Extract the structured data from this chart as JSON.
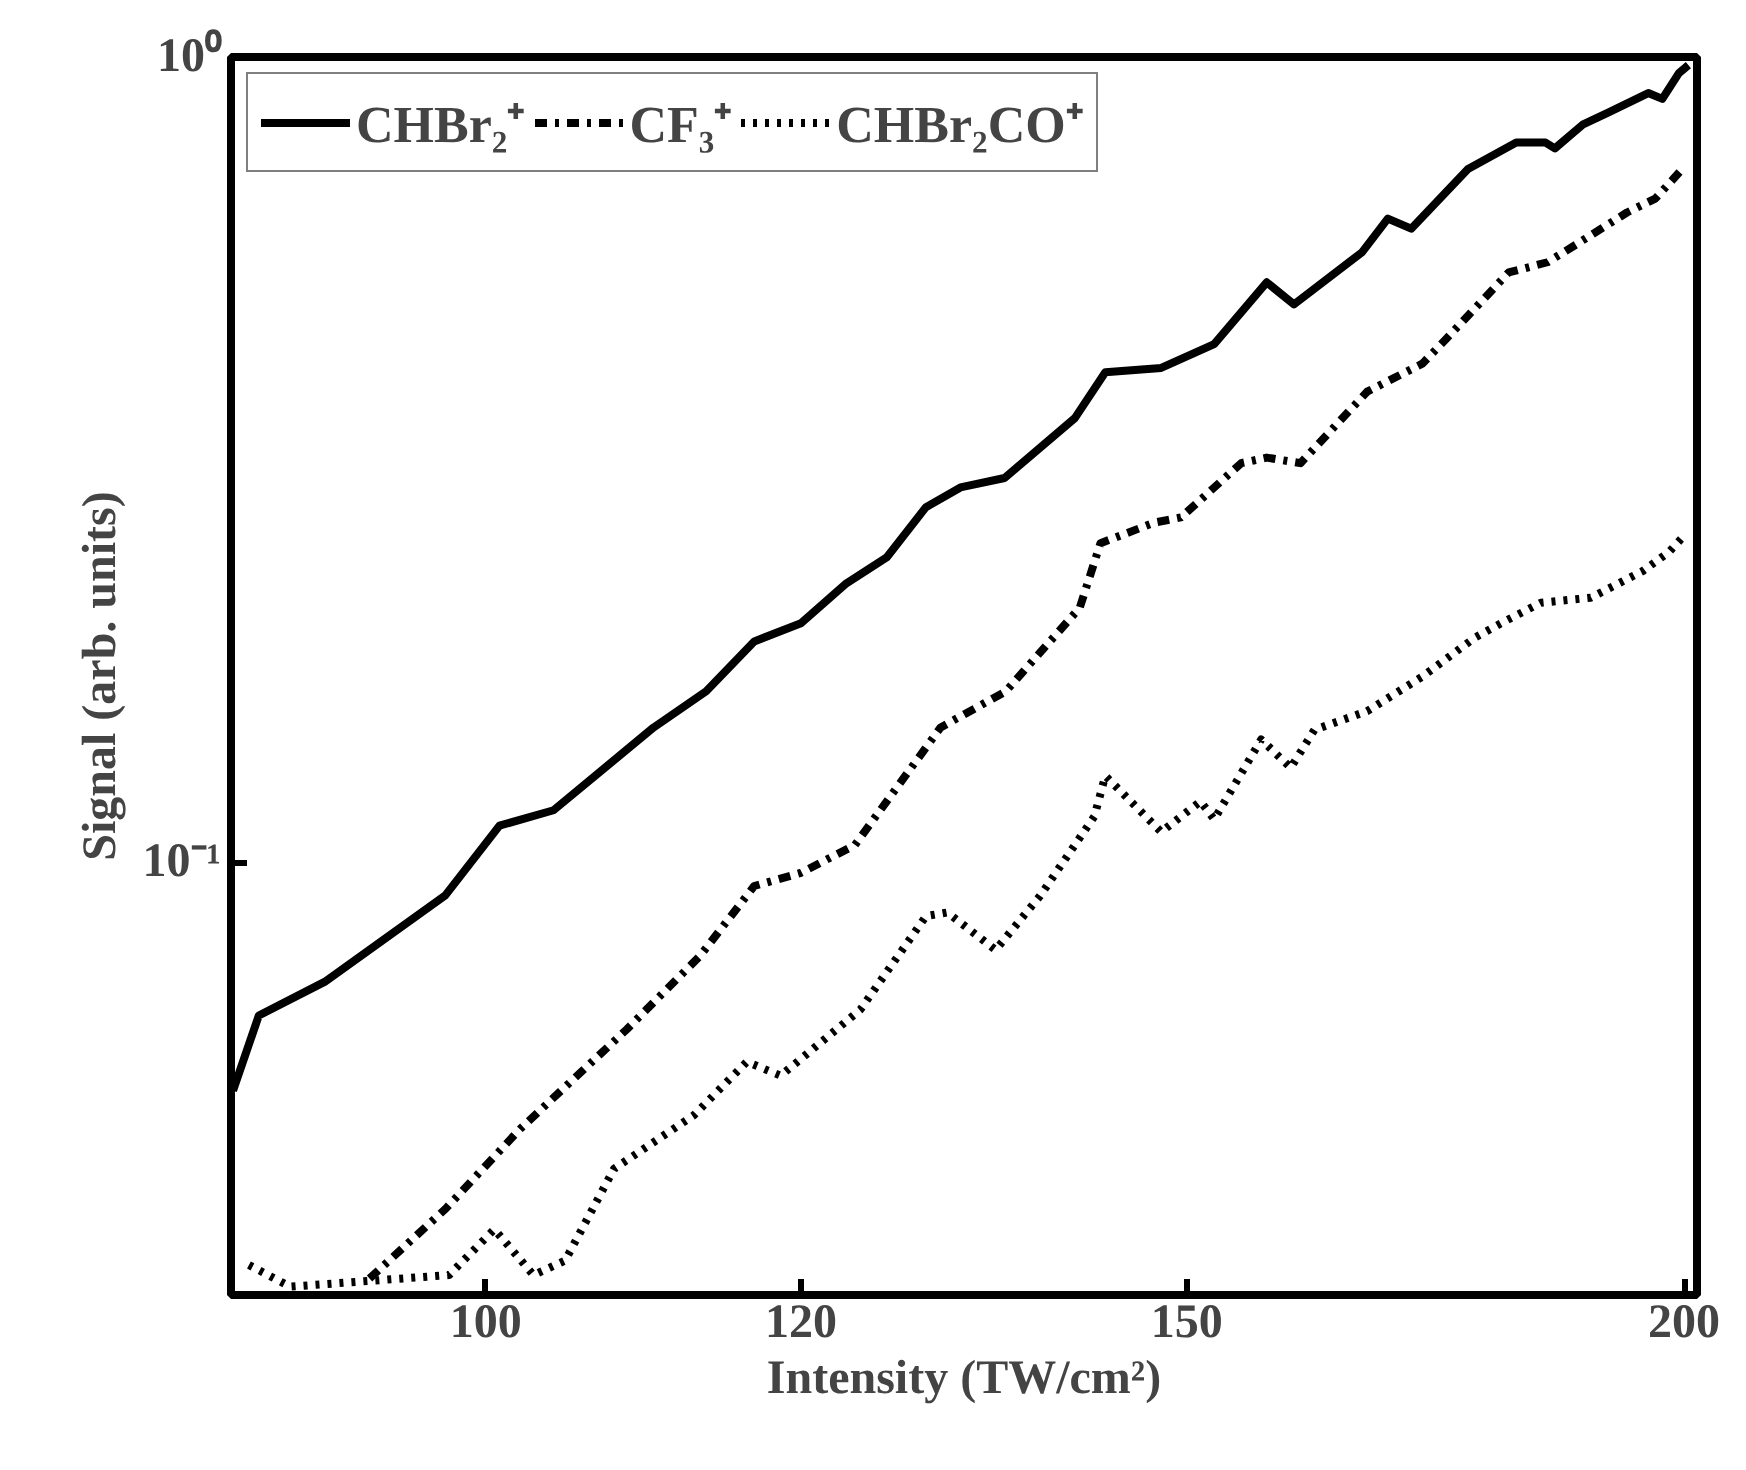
{
  "chart_data": {
    "type": "line",
    "xlabel": "Intensity (TW/cm²)",
    "ylabel": "Signal (arb. units)",
    "log": "xy",
    "xlim": [
      86.3,
      201.5
    ],
    "ylim": [
      0.029,
      1
    ],
    "xticks": [
      100,
      120,
      150,
      200
    ],
    "yticks": [
      {
        "value": 0.1,
        "label": "10⁻¹"
      },
      {
        "value": 1,
        "label": "10⁰"
      }
    ],
    "grid": false,
    "legend": "top left",
    "series": [
      {
        "name": "CHBr₂⁺",
        "color": "#000000",
        "line_style": "solid",
        "x": [
          86.4,
          87.7,
          91.1,
          97.7,
          100.8,
          104,
          110.2,
          113.6,
          116.8,
          120,
          123.2,
          126.1,
          129,
          131.6,
          135,
          140.6,
          143.1,
          147.8,
          152.4,
          157.1,
          159.6,
          166,
          168.5,
          170.8,
          176.5,
          181.5,
          184.6,
          185.6,
          188.6,
          191.4,
          195.9,
          197.5,
          199.4,
          200.5
        ],
        "values": [
          0.052,
          0.0645,
          0.071,
          0.091,
          0.111,
          0.116,
          0.147,
          0.163,
          0.188,
          0.198,
          0.222,
          0.239,
          0.276,
          0.292,
          0.3,
          0.356,
          0.406,
          0.411,
          0.44,
          0.525,
          0.493,
          0.572,
          0.63,
          0.612,
          0.726,
          0.783,
          0.783,
          0.77,
          0.824,
          0.853,
          0.902,
          0.887,
          0.955,
          0.977
        ]
      },
      {
        "name": "CF₃⁺",
        "color": "#000000",
        "line_style": "dashdot",
        "x": [
          93.5,
          97.7,
          102,
          108.5,
          113.2,
          116.8,
          120,
          123.8,
          130.1,
          135.1,
          141,
          142.7,
          147.2,
          149.5,
          154.8,
          157.1,
          160.2,
          166.5,
          171.9,
          174.4,
          180.7,
          184.8,
          187.9,
          193.5,
          196.7,
          199.8
        ],
        "values": [
          0.0304,
          0.0371,
          0.0466,
          0.062,
          0.0765,
          0.0934,
          0.097,
          0.105,
          0.147,
          0.163,
          0.207,
          0.249,
          0.264,
          0.268,
          0.313,
          0.318,
          0.313,
          0.384,
          0.416,
          0.448,
          0.54,
          0.556,
          0.585,
          0.641,
          0.667,
          0.726
        ]
      },
      {
        "name": "CHBr₂CO⁺",
        "color": "#000000",
        "line_style": "dotted",
        "x": [
          87.2,
          89.3,
          97.9,
          100.5,
          102.8,
          104.7,
          107.7,
          112.8,
          116.3,
          118.6,
          124.2,
          129,
          130.6,
          134.3,
          137.8,
          142.2,
          143.1,
          147.8,
          151.2,
          152.4,
          156.6,
          159.3,
          161.5,
          166.5,
          171.9,
          177.2,
          179.9,
          184.1,
          189.5,
          195.3,
          198.3,
          199.8
        ],
        "values": [
          0.0316,
          0.0297,
          0.0307,
          0.035,
          0.0307,
          0.032,
          0.0416,
          0.0485,
          0.0565,
          0.0543,
          0.0656,
          0.0857,
          0.0866,
          0.0778,
          0.0908,
          0.114,
          0.128,
          0.109,
          0.119,
          0.113,
          0.142,
          0.131,
          0.146,
          0.154,
          0.17,
          0.19,
          0.198,
          0.21,
          0.213,
          0.23,
          0.243,
          0.253
        ]
      }
    ]
  }
}
